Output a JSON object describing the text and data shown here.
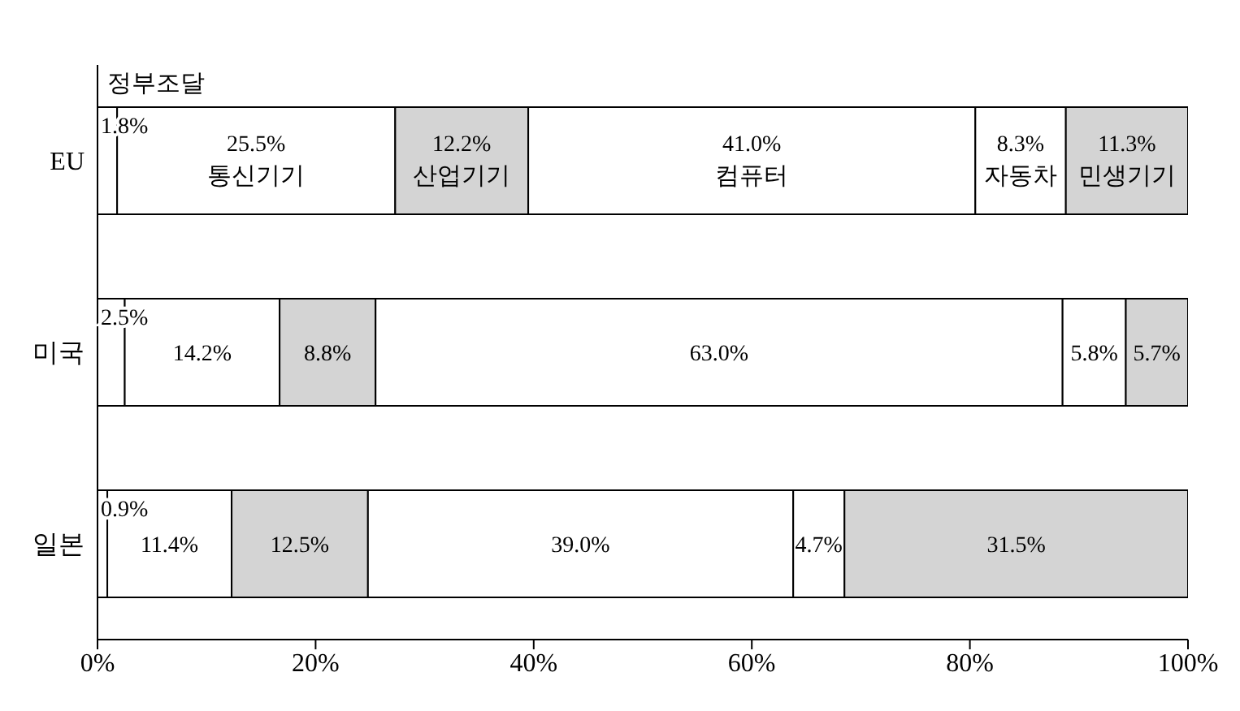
{
  "chart_data": {
    "type": "bar",
    "orientation": "horizontal",
    "stacked": true,
    "categories": [
      "EU",
      "미국",
      "일본"
    ],
    "series": [
      {
        "name": "정부조달",
        "color": "#ffffff",
        "values": [
          1.8,
          2.5,
          0.9
        ],
        "value_labels": [
          "1.8%",
          "2.5%",
          "0.9%"
        ]
      },
      {
        "name": "통신기기",
        "color": "#ffffff",
        "values": [
          25.5,
          14.2,
          11.4
        ],
        "value_labels": [
          "25.5%",
          "14.2%",
          "11.4%"
        ]
      },
      {
        "name": "산업기기",
        "color": "#d4d4d4",
        "values": [
          12.2,
          8.8,
          12.5
        ],
        "value_labels": [
          "12.2%",
          "8.8%",
          "12.5%"
        ]
      },
      {
        "name": "컴퓨터",
        "color": "#ffffff",
        "values": [
          41.0,
          63.0,
          39.0
        ],
        "value_labels": [
          "41.0%",
          "63.0%",
          "39.0%"
        ]
      },
      {
        "name": "자동차",
        "color": "#ffffff",
        "values": [
          8.3,
          5.8,
          4.7
        ],
        "value_labels": [
          "8.3%",
          "5.8%",
          "4.7%"
        ]
      },
      {
        "name": "민생기기",
        "color": "#d4d4d4",
        "values": [
          11.3,
          5.7,
          31.5
        ],
        "value_labels": [
          "11.3%",
          "5.7%",
          "31.5%"
        ]
      }
    ],
    "xlim": [
      0,
      100
    ],
    "xticks": [
      {
        "value": 0,
        "label": "0%"
      },
      {
        "value": 20,
        "label": "20%"
      },
      {
        "value": 40,
        "label": "40%"
      },
      {
        "value": 60,
        "label": "60%"
      },
      {
        "value": 80,
        "label": "80%"
      },
      {
        "value": 100,
        "label": "100%"
      }
    ]
  }
}
